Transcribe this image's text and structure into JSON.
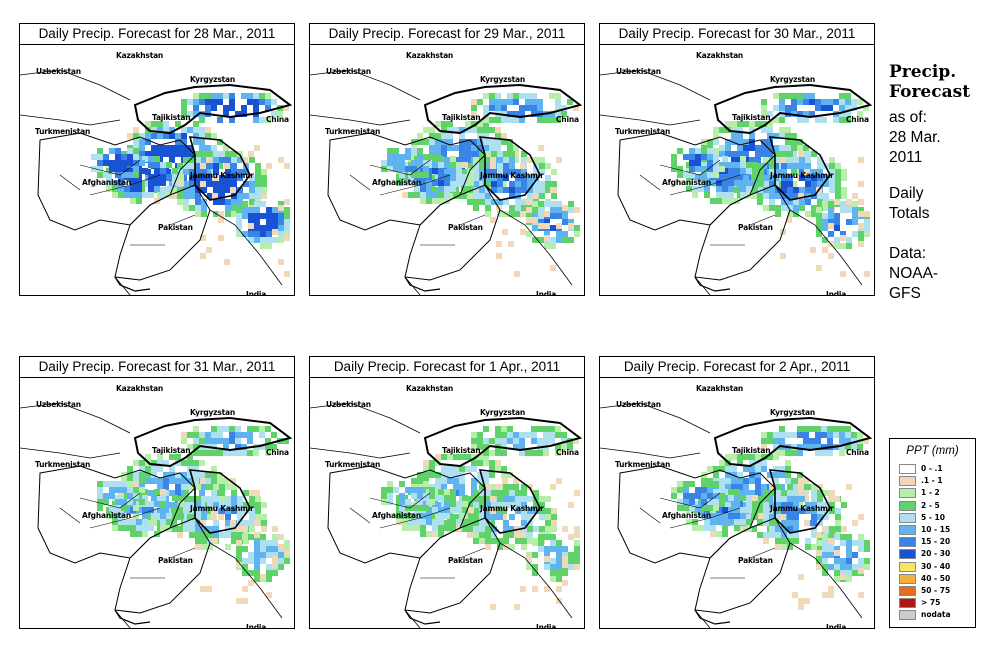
{
  "panels": [
    {
      "title": "Daily Precip. Forecast for  28 Mar., 2011",
      "intensity": 1.0
    },
    {
      "title": "Daily Precip. Forecast for  29 Mar., 2011",
      "intensity": 0.7
    },
    {
      "title": "Daily Precip. Forecast for  30 Mar., 2011",
      "intensity": 0.75
    },
    {
      "title": "Daily Precip. Forecast for  31 Mar., 2011",
      "intensity": 0.55
    },
    {
      "title": "Daily Precip. Forecast for  1 Apr., 2011",
      "intensity": 0.5
    },
    {
      "title": "Daily Precip. Forecast for  2 Apr., 2011",
      "intensity": 0.65
    }
  ],
  "map_labels": {
    "kazakhstan": "Kazakhstan",
    "uzbekistan": "Uzbekistan",
    "kyrgyzstan": "Kyrgyzstan",
    "tajikistan": "Tajikistan",
    "china": "China",
    "turkmenistan": "Turkmenistan",
    "afghanistan": "Afghanistan",
    "jammu_kashmir": "Jammu Kashmir",
    "pakistan": "Pakistan",
    "india": "India"
  },
  "side": {
    "title_line1": "Precip.",
    "title_line2": "Forecast",
    "asof_line1": "as of:",
    "asof_line2": "28 Mar.",
    "asof_line3": "2011",
    "totals_line1": "Daily",
    "totals_line2": "Totals",
    "data_line1": "Data:",
    "data_line2": "NOAA-",
    "data_line3": "GFS"
  },
  "legend": {
    "title": "PPT (mm)",
    "items": [
      {
        "label": "0 - .1",
        "color": "#ffffff"
      },
      {
        "label": ".1 - 1",
        "color": "#f0d9b8"
      },
      {
        "label": "1 - 2",
        "color": "#b6eeaa"
      },
      {
        "label": "2 - 5",
        "color": "#5fd36a"
      },
      {
        "label": "5 - 10",
        "color": "#aee0f0"
      },
      {
        "label": "10 - 15",
        "color": "#5fb3ef"
      },
      {
        "label": "15 - 20",
        "color": "#3a84e6"
      },
      {
        "label": "20 - 30",
        "color": "#1a52d4"
      },
      {
        "label": "30 - 40",
        "color": "#f5e663"
      },
      {
        "label": "40 - 50",
        "color": "#f3b23a"
      },
      {
        "label": "50 - 75",
        "color": "#e86c1e"
      },
      {
        "label": "> 75",
        "color": "#b01818"
      },
      {
        "label": "nodata",
        "color": "#cccccc"
      }
    ]
  }
}
